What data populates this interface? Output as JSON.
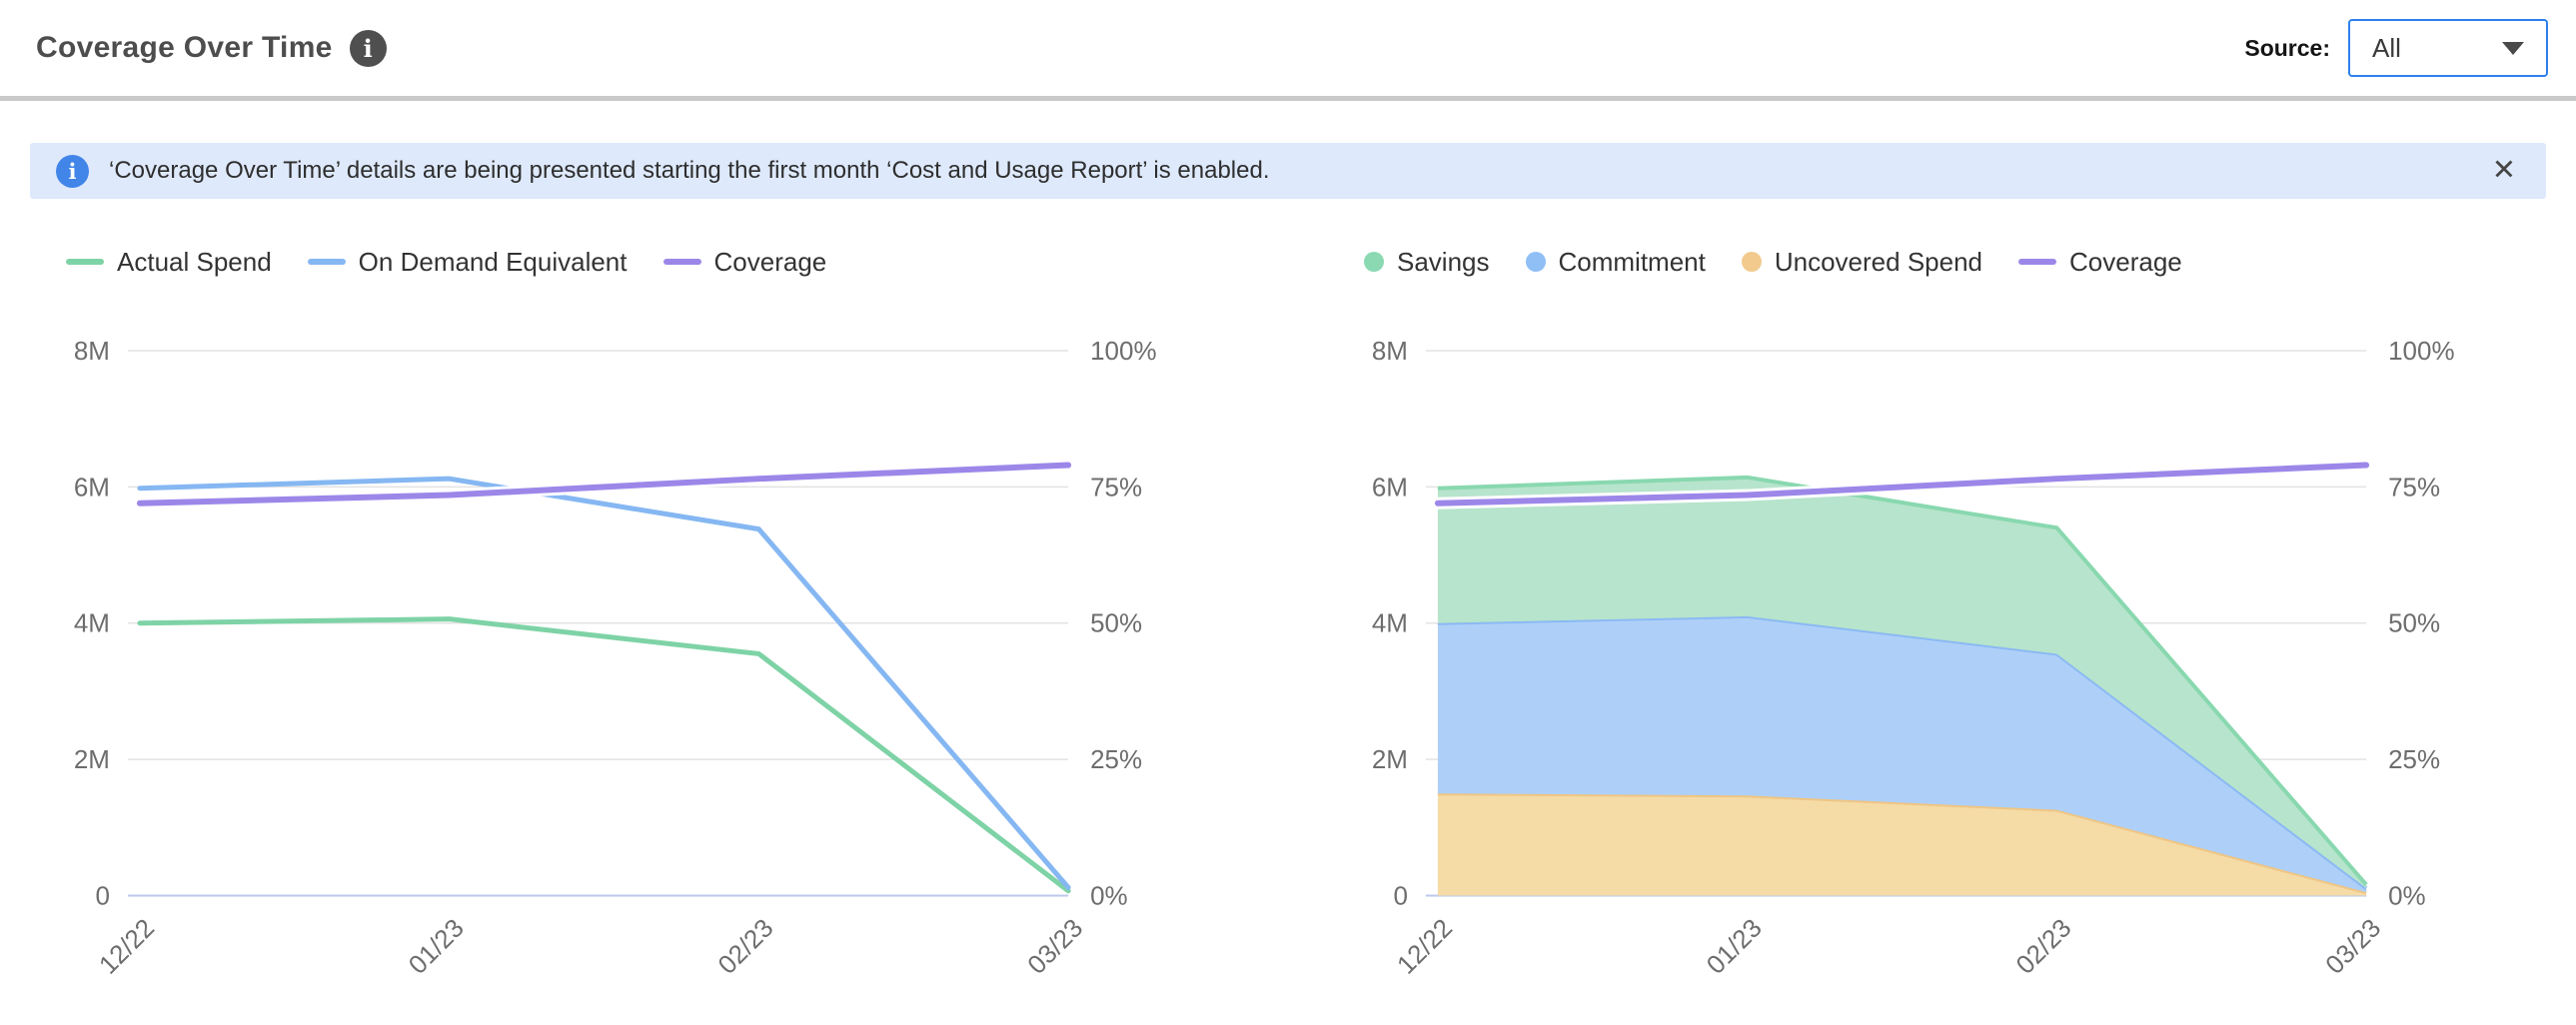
{
  "header": {
    "title": "Coverage Over Time",
    "source_label": "Source:",
    "source_value": "All"
  },
  "banner": {
    "text": "‘Coverage Over Time’ details are being presented starting the first month ‘Cost and Usage Report’ is enabled.",
    "background": "#dee9fb",
    "icon_color": "#4285e8"
  },
  "icons": {
    "title_info": "info-icon",
    "banner_info": "info-icon",
    "banner_close": "close-icon",
    "dropdown_caret": "chevron-down-icon"
  },
  "theme": {
    "accent_blue": "#2f80ed",
    "grid_line": "#e3e3e3",
    "zero_line": "#bcc9ec",
    "axis_text": "#6d6d6d",
    "green": "#7ed3a6",
    "blue": "#85b7f2",
    "purple": "#9c87e9",
    "orange": "#f2ca8e"
  },
  "chart_data": [
    {
      "type": "line",
      "x": [
        "12/22",
        "01/23",
        "02/23",
        "03/23"
      ],
      "left_axis": {
        "ticks": [
          "8M",
          "6M",
          "4M",
          "2M",
          "0"
        ],
        "max": 8,
        "unit": "M"
      },
      "right_axis": {
        "ticks": [
          "100%",
          "75%",
          "50%",
          "25%",
          "0%"
        ],
        "max": 100,
        "unit": "%"
      },
      "grid": true,
      "legend_position": "top",
      "legend": [
        {
          "label": "Actual Spend",
          "swatch": "line",
          "color": "#7ed3a6"
        },
        {
          "label": "On Demand Equivalent",
          "swatch": "line",
          "color": "#85b7f2"
        },
        {
          "label": "Coverage",
          "swatch": "line",
          "color": "#9c87e9"
        }
      ],
      "line_series": [
        {
          "name": "Actual Spend",
          "axis": "left",
          "color": "#7ed3a6",
          "width": 5,
          "values": [
            4.0,
            4.06,
            3.55,
            0.07
          ]
        },
        {
          "name": "On Demand Equivalent",
          "axis": "left",
          "color": "#85b7f2",
          "width": 5,
          "values": [
            5.98,
            6.12,
            5.38,
            0.12
          ]
        },
        {
          "name": "Coverage",
          "axis": "right",
          "color": "#9c87e9",
          "width": 6,
          "halo": true,
          "values": [
            72,
            73.5,
            76.5,
            79
          ]
        }
      ]
    },
    {
      "type": "area",
      "x": [
        "12/22",
        "01/23",
        "02/23",
        "03/23"
      ],
      "left_axis": {
        "ticks": [
          "8M",
          "6M",
          "4M",
          "2M",
          "0"
        ],
        "max": 8,
        "unit": "M"
      },
      "right_axis": {
        "ticks": [
          "100%",
          "75%",
          "50%",
          "25%",
          "0%"
        ],
        "max": 100,
        "unit": "%"
      },
      "grid": true,
      "stacked": true,
      "legend_position": "top",
      "legend": [
        {
          "label": "Savings",
          "swatch": "dot",
          "color": "#8bd9b2"
        },
        {
          "label": "Commitment",
          "swatch": "dot",
          "color": "#90bff6"
        },
        {
          "label": "Uncovered Spend",
          "swatch": "dot",
          "color": "#f2ca8e"
        },
        {
          "label": "Coverage",
          "swatch": "line",
          "color": "#9c87e9"
        }
      ],
      "series": [
        {
          "name": "Uncovered Spend",
          "fill": "#f5dba6",
          "stroke": "#efc584",
          "values": [
            1.5,
            1.47,
            1.26,
            0.05
          ]
        },
        {
          "name": "Commitment",
          "fill": "#aed0f8",
          "stroke": "#8bb9f4",
          "values": [
            2.5,
            2.63,
            2.29,
            0.06
          ]
        },
        {
          "name": "Savings",
          "fill": "#b7e4cc",
          "stroke": "#89d8af",
          "values": [
            1.98,
            2.04,
            1.85,
            0.05
          ]
        }
      ],
      "line_series": [
        {
          "name": "Coverage",
          "axis": "right",
          "color": "#9c87e9",
          "width": 6,
          "halo": true,
          "values": [
            72,
            73.5,
            76.5,
            79
          ]
        }
      ]
    }
  ]
}
